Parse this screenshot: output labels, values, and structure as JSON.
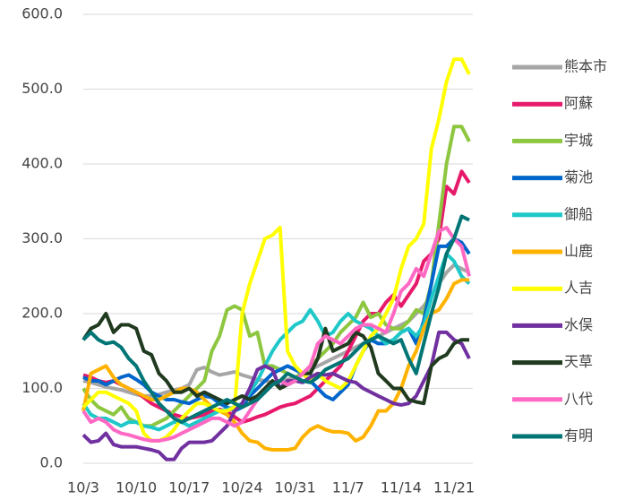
{
  "chart_data": {
    "type": "line",
    "categories": [
      "10/3",
      null,
      null,
      null,
      null,
      null,
      null,
      "10/10",
      null,
      null,
      null,
      null,
      null,
      null,
      "10/17",
      null,
      null,
      null,
      null,
      null,
      null,
      "10/24",
      null,
      null,
      null,
      null,
      null,
      null,
      "10/31",
      null,
      null,
      null,
      null,
      null,
      null,
      "11/7",
      null,
      null,
      null,
      null,
      null,
      null,
      "11/14",
      null,
      null,
      null,
      null,
      null,
      null,
      "11/21",
      null,
      null
    ],
    "ylim": [
      0,
      600
    ],
    "yticks": [
      {
        "value": 0,
        "label": "0.0"
      },
      {
        "value": 100,
        "label": "100.0"
      },
      {
        "value": 200,
        "label": "200.0"
      },
      {
        "value": 300,
        "label": "300.0"
      },
      {
        "value": 400,
        "label": "400.0"
      },
      {
        "value": 500,
        "label": "500.0"
      },
      {
        "value": 600,
        "label": "600.0"
      }
    ],
    "grid": true,
    "legend": "right",
    "series": [
      {
        "name": "熊本市",
        "color": "#a6a6a6",
        "values": [
          110,
          108,
          105,
          102,
          100,
          98,
          95,
          92,
          90,
          90,
          92,
          95,
          98,
          100,
          105,
          125,
          128,
          122,
          118,
          120,
          122,
          118,
          115,
          112,
          110,
          108,
          110,
          112,
          115,
          120,
          125,
          130,
          135,
          140,
          145,
          150,
          155,
          160,
          165,
          170,
          175,
          180,
          185,
          190,
          200,
          210,
          225,
          240,
          255,
          265,
          260,
          255
        ]
      },
      {
        "name": "阿蘇",
        "color": "#e6196a",
        "values": [
          118,
          115,
          110,
          108,
          110,
          105,
          100,
          95,
          88,
          80,
          75,
          70,
          65,
          62,
          60,
          62,
          65,
          70,
          72,
          70,
          62,
          55,
          58,
          62,
          65,
          70,
          75,
          78,
          80,
          85,
          90,
          100,
          110,
          120,
          130,
          150,
          170,
          190,
          200,
          200,
          215,
          225,
          210,
          225,
          240,
          270,
          280,
          300,
          370,
          360,
          390,
          375
        ]
      },
      {
        "name": "宇城",
        "color": "#8dc63f",
        "values": [
          100,
          85,
          75,
          70,
          65,
          75,
          60,
          55,
          50,
          50,
          55,
          60,
          70,
          80,
          90,
          100,
          110,
          150,
          170,
          205,
          210,
          205,
          170,
          175,
          130,
          130,
          125,
          120,
          115,
          120,
          130,
          140,
          150,
          160,
          175,
          185,
          195,
          215,
          195,
          200,
          185,
          180,
          180,
          190,
          205,
          200,
          240,
          320,
          400,
          450,
          450,
          430
        ]
      },
      {
        "name": "菊池",
        "color": "#0066cc",
        "values": [
          115,
          110,
          110,
          105,
          110,
          115,
          118,
          112,
          105,
          95,
          90,
          85,
          85,
          82,
          80,
          85,
          90,
          88,
          80,
          75,
          70,
          75,
          90,
          100,
          110,
          120,
          125,
          130,
          125,
          120,
          110,
          100,
          90,
          85,
          95,
          105,
          130,
          150,
          165,
          160,
          160,
          165,
          175,
          180,
          160,
          190,
          240,
          290,
          290,
          300,
          295,
          280
        ]
      },
      {
        "name": "御船",
        "color": "#1fc8c8",
        "values": [
          80,
          65,
          60,
          60,
          55,
          50,
          55,
          55,
          50,
          48,
          45,
          50,
          55,
          55,
          50,
          55,
          60,
          65,
          70,
          72,
          75,
          80,
          95,
          110,
          130,
          150,
          165,
          175,
          185,
          190,
          205,
          190,
          170,
          175,
          190,
          200,
          190,
          185,
          180,
          170,
          160,
          165,
          175,
          180,
          170,
          185,
          220,
          250,
          280,
          270,
          250,
          240
        ]
      },
      {
        "name": "山鹿",
        "color": "#ffb300",
        "values": [
          70,
          120,
          125,
          130,
          115,
          105,
          100,
          95,
          90,
          85,
          85,
          90,
          95,
          100,
          100,
          95,
          85,
          75,
          70,
          65,
          55,
          40,
          30,
          28,
          20,
          18,
          18,
          18,
          20,
          35,
          45,
          50,
          45,
          42,
          42,
          40,
          30,
          35,
          50,
          70,
          70,
          80,
          100,
          130,
          150,
          180,
          200,
          205,
          220,
          240,
          245,
          245
        ]
      },
      {
        "name": "人吉",
        "color": "#ffff00",
        "values": [
          75,
          85,
          95,
          95,
          90,
          85,
          80,
          70,
          40,
          30,
          30,
          35,
          45,
          60,
          70,
          80,
          80,
          75,
          70,
          70,
          75,
          200,
          240,
          270,
          300,
          305,
          315,
          150,
          130,
          120,
          110,
          120,
          110,
          105,
          100,
          110,
          130,
          150,
          170,
          180,
          200,
          220,
          260,
          290,
          300,
          320,
          420,
          460,
          510,
          540,
          540,
          520
        ]
      },
      {
        "name": "水俣",
        "color": "#7030a0",
        "values": [
          38,
          28,
          30,
          40,
          25,
          22,
          22,
          22,
          20,
          18,
          15,
          5,
          5,
          20,
          28,
          28,
          28,
          30,
          40,
          50,
          70,
          80,
          100,
          125,
          130,
          125,
          100,
          110,
          110,
          108,
          115,
          120,
          118,
          120,
          115,
          110,
          108,
          100,
          95,
          90,
          85,
          80,
          78,
          80,
          90,
          110,
          130,
          175,
          175,
          165,
          160,
          140
        ]
      },
      {
        "name": "天草",
        "color": "#1f3a1f",
        "values": [
          165,
          180,
          185,
          200,
          175,
          185,
          185,
          180,
          150,
          145,
          120,
          110,
          95,
          95,
          100,
          90,
          95,
          90,
          85,
          80,
          85,
          90,
          85,
          90,
          100,
          110,
          100,
          105,
          110,
          120,
          120,
          140,
          180,
          150,
          155,
          160,
          175,
          170,
          155,
          120,
          110,
          100,
          100,
          85,
          82,
          80,
          130,
          140,
          145,
          160,
          165,
          165
        ]
      },
      {
        "name": "八代",
        "color": "#ff69c4",
        "values": [
          70,
          55,
          60,
          55,
          45,
          40,
          38,
          35,
          32,
          30,
          30,
          32,
          35,
          40,
          45,
          50,
          55,
          60,
          60,
          55,
          50,
          55,
          70,
          85,
          95,
          105,
          110,
          105,
          110,
          120,
          130,
          160,
          170,
          165,
          160,
          170,
          180,
          185,
          185,
          180,
          175,
          200,
          230,
          240,
          260,
          250,
          280,
          310,
          315,
          300,
          290,
          250
        ]
      },
      {
        "name": "有明",
        "color": "#007575",
        "values": [
          165,
          175,
          165,
          160,
          162,
          155,
          140,
          130,
          110,
          95,
          80,
          70,
          60,
          55,
          60,
          65,
          70,
          75,
          80,
          85,
          80,
          75,
          80,
          85,
          95,
          105,
          110,
          120,
          115,
          110,
          108,
          115,
          125,
          130,
          135,
          140,
          150,
          160,
          165,
          170,
          165,
          160,
          165,
          140,
          120,
          160,
          200,
          235,
          280,
          300,
          330,
          325
        ]
      }
    ]
  }
}
